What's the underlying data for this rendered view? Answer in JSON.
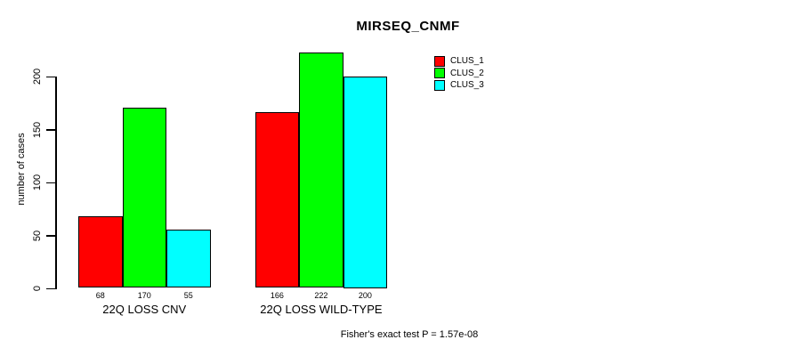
{
  "chart_data": {
    "type": "bar",
    "title": "MIRSEQ_CNMF",
    "ylabel": "number of cases",
    "xlabel": "",
    "categories": [
      "22Q LOSS CNV",
      "22Q LOSS WILD-TYPE"
    ],
    "series": [
      {
        "name": "CLUS_1",
        "color": "#ff0000",
        "values": [
          68,
          166
        ]
      },
      {
        "name": "CLUS_2",
        "color": "#00ff00",
        "values": [
          170,
          222
        ]
      },
      {
        "name": "CLUS_3",
        "color": "#00ffff",
        "values": [
          55,
          200
        ]
      }
    ],
    "bar_value_labels": [
      [
        "68",
        "170",
        "55"
      ],
      [
        "166",
        "222",
        "200"
      ]
    ],
    "yticks": [
      "0",
      "50",
      "100",
      "150",
      "200"
    ],
    "ylim": [
      0,
      222
    ],
    "grid": false,
    "legend_position": "top-right",
    "legend_box": false,
    "caption": "Fisher's exact test P = 1.57e-08"
  },
  "colors": {
    "background": "#ffffff",
    "axis": "#000000",
    "text": "#000000"
  }
}
